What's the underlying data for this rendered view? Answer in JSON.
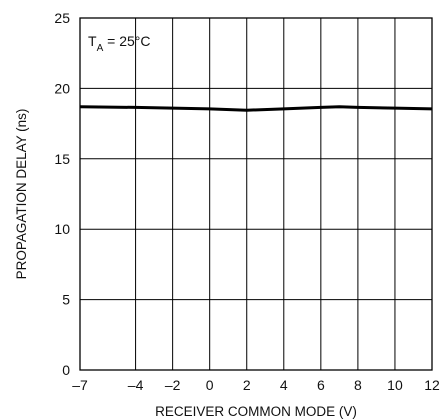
{
  "chart_data": {
    "type": "line",
    "title": "",
    "xlabel": "RECEIVER COMMON MODE (V)",
    "ylabel": "PROPAGATION DELAY (ns)",
    "xlim": [
      -7,
      12
    ],
    "ylim": [
      0,
      25
    ],
    "grid": true,
    "x_ticks": [
      -7,
      -4,
      -2,
      0,
      2,
      4,
      6,
      8,
      10,
      12
    ],
    "y_ticks": [
      0,
      5,
      10,
      15,
      20,
      25
    ],
    "x_tick_labels": [
      "–7",
      "–4",
      "–2",
      "0",
      "2",
      "4",
      "6",
      "8",
      "10",
      "12"
    ],
    "y_tick_labels": [
      "0",
      "5",
      "10",
      "15",
      "20",
      "25"
    ],
    "annotation": {
      "prefix": "T",
      "subscript": "A",
      "suffix": " = 25°C"
    },
    "series": [
      {
        "x": [
          -7,
          -4,
          -2,
          0,
          2,
          4,
          6,
          7,
          8,
          10,
          12
        ],
        "y": [
          18.7,
          18.65,
          18.6,
          18.55,
          18.45,
          18.55,
          18.65,
          18.7,
          18.65,
          18.6,
          18.55
        ]
      }
    ],
    "line_color": "#000000",
    "grid_color": "#000000"
  }
}
